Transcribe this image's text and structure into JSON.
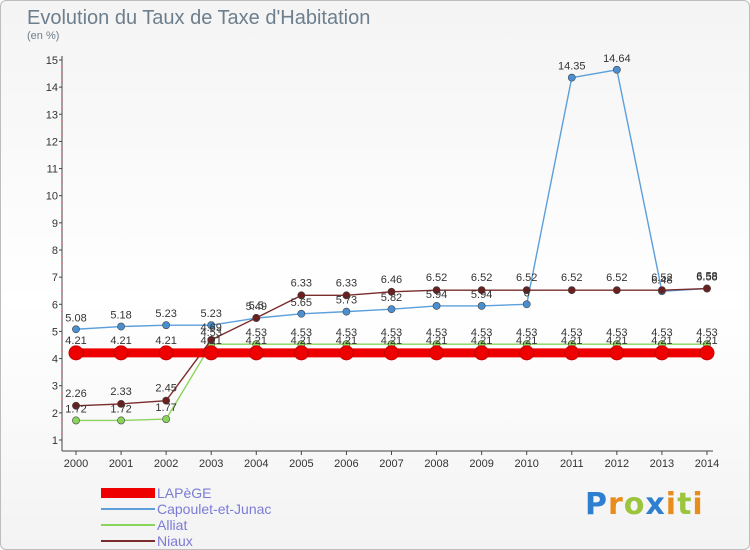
{
  "chart_data": {
    "type": "line",
    "title": "Evolution du Taux de Taxe d'Habitation",
    "ylabel": "(en %)",
    "xlabel": "",
    "x": [
      "2000",
      "2001",
      "2002",
      "2003",
      "2004",
      "2005",
      "2006",
      "2007",
      "2008",
      "2009",
      "2010",
      "2011",
      "2012",
      "2013",
      "2014"
    ],
    "ylim": [
      1,
      15
    ],
    "yticks": [
      1,
      2,
      3,
      4,
      5,
      6,
      7,
      8,
      9,
      10,
      11,
      12,
      13,
      14,
      15
    ],
    "grid": false,
    "legend_position": "bottom-left",
    "series": [
      {
        "name": "LAPèGE",
        "color": "#ee0000",
        "values": [
          4.21,
          4.21,
          4.21,
          4.21,
          4.21,
          4.21,
          4.21,
          4.21,
          4.21,
          4.21,
          4.21,
          4.21,
          4.21,
          4.21,
          4.21
        ]
      },
      {
        "name": "Capoulet-et-Junac",
        "color": "#5c9fdb",
        "values": [
          5.08,
          5.18,
          5.23,
          5.23,
          5.49,
          5.65,
          5.73,
          5.82,
          5.94,
          5.94,
          6.0,
          14.35,
          14.64,
          6.48,
          6.58
        ]
      },
      {
        "name": "Alliat",
        "color": "#8bd45c",
        "values": [
          1.72,
          1.72,
          1.77,
          4.53,
          4.53,
          4.53,
          4.53,
          4.53,
          4.53,
          4.53,
          4.53,
          4.53,
          4.53,
          4.53,
          4.53
        ]
      },
      {
        "name": "Niaux",
        "color": "#7a2b2b",
        "values": [
          2.26,
          2.33,
          2.45,
          4.69,
          5.5,
          6.33,
          6.33,
          6.46,
          6.52,
          6.52,
          6.52,
          6.52,
          6.52,
          6.52,
          6.58
        ]
      }
    ],
    "point_labels": {
      "LAPèGE": [
        "4.21",
        "4.21",
        "4.21",
        "4.21",
        "4.21",
        "4.21",
        "4.21",
        "4.21",
        "4.21",
        "4.21",
        "4.21",
        "4.21",
        "4.21",
        "4.21",
        "4.21"
      ],
      "Capoulet-et-Junac": [
        "5.08",
        "5.18",
        "5.23",
        "5.23",
        "5.49",
        "5.65",
        "5.73",
        "5.82",
        "5.94",
        "5.94",
        "6",
        "14.35",
        "14.64",
        "6.48",
        "6.58"
      ],
      "Alliat": [
        "1.72",
        "1.72",
        "1.77",
        "4.53",
        "4.53",
        "4.53",
        "4.53",
        "4.53",
        "4.53",
        "4.53",
        "4.53",
        "4.53",
        "4.53",
        "4.53",
        "4.53"
      ],
      "Niaux": [
        "2.26",
        "2.33",
        "2.45",
        "4.69",
        "5.5",
        "6.33",
        "6.33",
        "6.46",
        "6.52",
        "6.52",
        "6.52",
        "6.52",
        "6.52",
        "6.52",
        "6.58"
      ]
    }
  },
  "branding": {
    "letters": [
      "P",
      "r",
      "o",
      "x",
      "i",
      "t",
      "i"
    ],
    "colors": [
      "#2f7fd1",
      "#e88c1c",
      "#9bc53d",
      "#2f7fd1",
      "#e88c1c",
      "#9bc53d",
      "#e88c1c"
    ]
  }
}
